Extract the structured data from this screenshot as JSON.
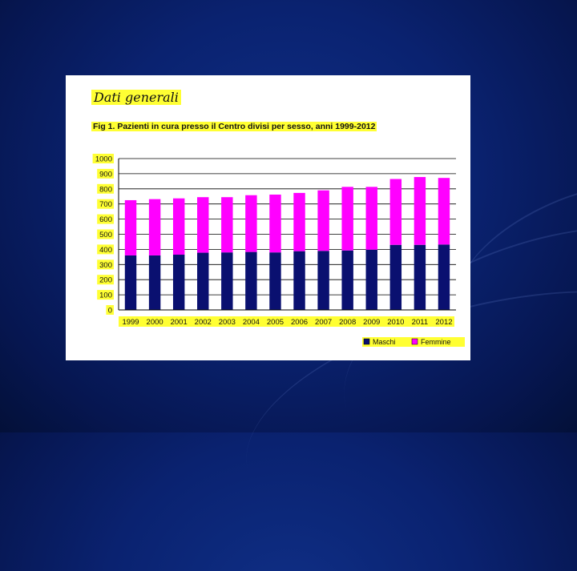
{
  "slide": {
    "heading": "Dati generali",
    "figure_caption": "Fig 1. Pazienti in cura presso il Centro divisi per sesso, anni 1999-2012",
    "colors": {
      "background": "#0a2270",
      "highlight": "#ffff33",
      "maschi": "#0a1070",
      "femmine": "#ff00ff"
    }
  },
  "chart_data": {
    "type": "bar",
    "stacked": true,
    "categories": [
      "1999",
      "2000",
      "2001",
      "2002",
      "2003",
      "2004",
      "2005",
      "2006",
      "2007",
      "2008",
      "2009",
      "2010",
      "2011",
      "2012"
    ],
    "series": [
      {
        "name": "Maschi",
        "color": "#0a1070",
        "values": [
          360,
          360,
          365,
          378,
          380,
          383,
          380,
          388,
          390,
          393,
          398,
          430,
          430,
          432
        ]
      },
      {
        "name": "Femmine",
        "color": "#ff00ff",
        "values": [
          365,
          372,
          372,
          367,
          365,
          375,
          382,
          385,
          400,
          420,
          415,
          435,
          448,
          440
        ]
      }
    ],
    "ylim": [
      0,
      1000
    ],
    "yticks": [
      "0",
      "100",
      "200",
      "300",
      "400",
      "500",
      "600",
      "700",
      "800",
      "900",
      "1000"
    ],
    "grid": true,
    "legend_position": "bottom-right"
  }
}
